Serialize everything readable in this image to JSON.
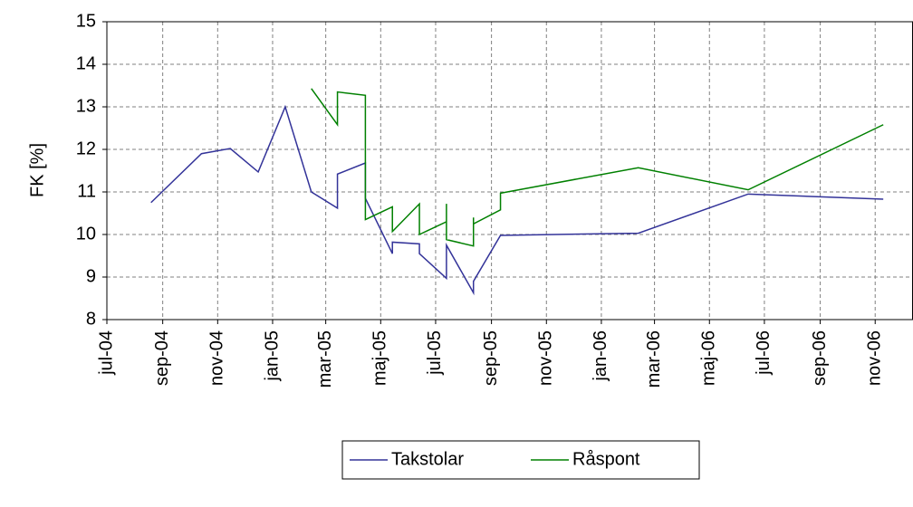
{
  "chart_data": {
    "type": "line",
    "y_label": "FK [%]",
    "xlim": [
      38169,
      39064
    ],
    "xticks": [
      {
        "value": 38169,
        "label": "jul-04"
      },
      {
        "value": 38231,
        "label": "sep-04"
      },
      {
        "value": 38292,
        "label": "nov-04"
      },
      {
        "value": 38353,
        "label": "jan-05"
      },
      {
        "value": 38412,
        "label": "mar-05"
      },
      {
        "value": 38473,
        "label": "maj-05"
      },
      {
        "value": 38534,
        "label": "jul-05"
      },
      {
        "value": 38596,
        "label": "sep-05"
      },
      {
        "value": 38657,
        "label": "nov-05"
      },
      {
        "value": 38718,
        "label": "jan-06"
      },
      {
        "value": 38777,
        "label": "mar-06"
      },
      {
        "value": 38838,
        "label": "maj-06"
      },
      {
        "value": 38899,
        "label": "jul-06"
      },
      {
        "value": 38961,
        "label": "sep-06"
      },
      {
        "value": 39022,
        "label": "nov-06"
      }
    ],
    "ylim": [
      8,
      15
    ],
    "yticks": [
      8,
      9,
      10,
      11,
      12,
      13,
      14,
      15
    ],
    "grid": true,
    "legend": "bottom",
    "series": [
      {
        "name": "Takstolar",
        "color": "#333399",
        "x": [
          38218,
          38274,
          38306,
          38337,
          38367,
          38396,
          38425,
          38425,
          38456,
          38456,
          38486,
          38486,
          38516,
          38516,
          38546,
          38546,
          38576,
          38576,
          38606,
          38759,
          38881,
          39031
        ],
        "values": [
          10.75,
          11.9,
          12.02,
          11.47,
          13.0,
          11.0,
          10.62,
          11.42,
          11.68,
          10.85,
          9.55,
          9.82,
          9.78,
          9.55,
          8.97,
          9.75,
          8.63,
          8.9,
          9.98,
          10.03,
          10.95,
          10.83
        ]
      },
      {
        "name": "Råspont",
        "color": "#008000",
        "x": [
          38396,
          38425,
          38425,
          38456,
          38456,
          38486,
          38486,
          38516,
          38516,
          38546,
          38546,
          38546,
          38576,
          38576,
          38576,
          38606,
          38606,
          38759,
          38881,
          39031
        ],
        "values": [
          13.43,
          12.58,
          13.35,
          13.27,
          10.35,
          10.65,
          10.07,
          10.72,
          10.0,
          10.3,
          10.72,
          9.88,
          9.73,
          10.4,
          10.25,
          10.58,
          10.97,
          11.57,
          11.05,
          12.58
        ]
      }
    ]
  }
}
